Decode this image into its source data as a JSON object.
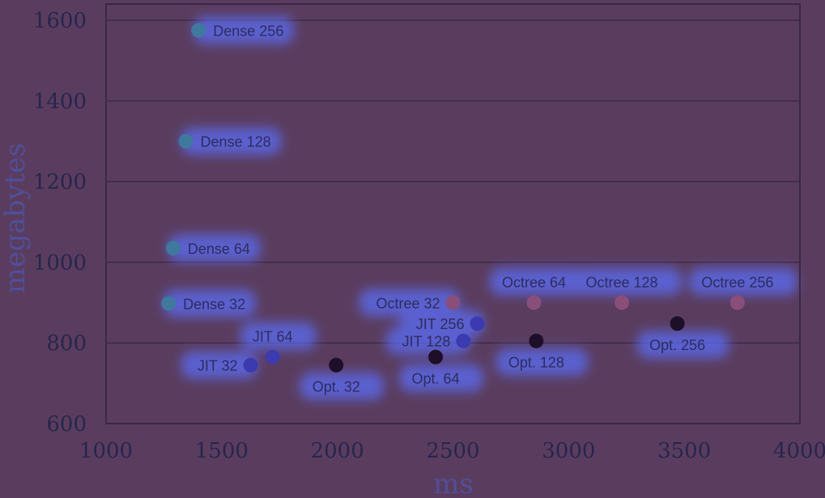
{
  "chart_data": {
    "type": "scatter",
    "title": "",
    "xlabel": "ms",
    "ylabel": "megabytes",
    "xlim": [
      1000,
      4000
    ],
    "ylim": [
      600,
      1600
    ],
    "xticks": [
      "1000",
      "1500",
      "2000",
      "2500",
      "3000",
      "3500",
      "4000"
    ],
    "yticks": [
      "600",
      "800",
      "1000",
      "1200",
      "1400",
      "1600"
    ],
    "grid": "horizontal",
    "colors": {
      "background": "#5a3d5e",
      "grid": "#3c2a45",
      "axis": "#3a2845",
      "label": "#2e2c5c",
      "axis_title": "#4f4f9a",
      "glow": "#5a6fff"
    },
    "series": [
      {
        "name": "Dense",
        "color": "#3d7a9e",
        "points": [
          {
            "label": "Dense 32",
            "x": 1270,
            "y": 898
          },
          {
            "label": "Dense 64",
            "x": 1290,
            "y": 1035
          },
          {
            "label": "Dense 128",
            "x": 1345,
            "y": 1300
          },
          {
            "label": "Dense 256",
            "x": 1400,
            "y": 1575
          }
        ]
      },
      {
        "name": "JIT",
        "color": "#3c3ab0",
        "points": [
          {
            "label": "JIT 32",
            "x": 1625,
            "y": 745
          },
          {
            "label": "JIT 64",
            "x": 1720,
            "y": 765
          },
          {
            "label": "JIT 128",
            "x": 2545,
            "y": 805
          },
          {
            "label": "JIT 256",
            "x": 2605,
            "y": 848
          }
        ]
      },
      {
        "name": "Octree",
        "color": "#8a4f78",
        "points": [
          {
            "label": "Octree 32",
            "x": 2500,
            "y": 900
          },
          {
            "label": "Octree 64",
            "x": 2850,
            "y": 900
          },
          {
            "label": "Octree 128",
            "x": 3230,
            "y": 900
          },
          {
            "label": "Octree 256",
            "x": 3730,
            "y": 900
          }
        ]
      },
      {
        "name": "Opt.",
        "color": "#1e0f28",
        "points": [
          {
            "label": "Opt. 32",
            "x": 1995,
            "y": 745
          },
          {
            "label": "Opt. 64",
            "x": 2425,
            "y": 765
          },
          {
            "label": "Opt. 128",
            "x": 2860,
            "y": 805
          },
          {
            "label": "Opt. 256",
            "x": 3470,
            "y": 848
          }
        ]
      }
    ]
  }
}
